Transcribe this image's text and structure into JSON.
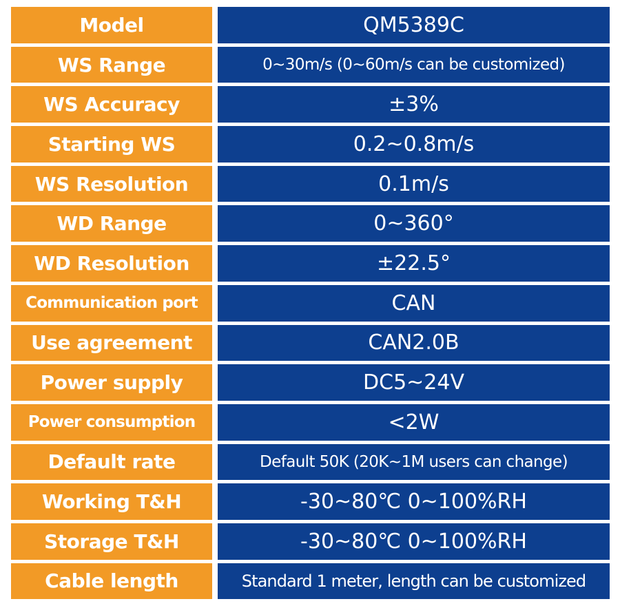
{
  "colors": {
    "label_background": "#f29a26",
    "value_background": "#0d3f8f",
    "text": "#ffffff"
  },
  "rows": [
    {
      "label": "Model",
      "value": "QM5389C"
    },
    {
      "label": "WS Range",
      "value": "0~30m/s (0~60m/s can be customized)"
    },
    {
      "label": "WS Accuracy",
      "value": "±3%"
    },
    {
      "label": "Starting WS",
      "value": "0.2~0.8m/s"
    },
    {
      "label": "WS Resolution",
      "value": "0.1m/s"
    },
    {
      "label": "WD Range",
      "value": "0~360°"
    },
    {
      "label": "WD Resolution",
      "value": "±22.5°"
    },
    {
      "label": "Communication port",
      "value": "CAN"
    },
    {
      "label": "Use agreement",
      "value": "CAN2.0B"
    },
    {
      "label": "Power supply",
      "value": "DC5~24V"
    },
    {
      "label": "Power consumption",
      "value": "<2W"
    },
    {
      "label": "Default rate",
      "value": "Default 50K (20K~1M users can change)"
    },
    {
      "label": "Working T&H",
      "value": "-30~80℃  0~100%RH"
    },
    {
      "label": "Storage T&H",
      "value": "-30~80℃  0~100%RH"
    },
    {
      "label": "Cable length",
      "value": "Standard 1 meter, length can be customized"
    }
  ]
}
